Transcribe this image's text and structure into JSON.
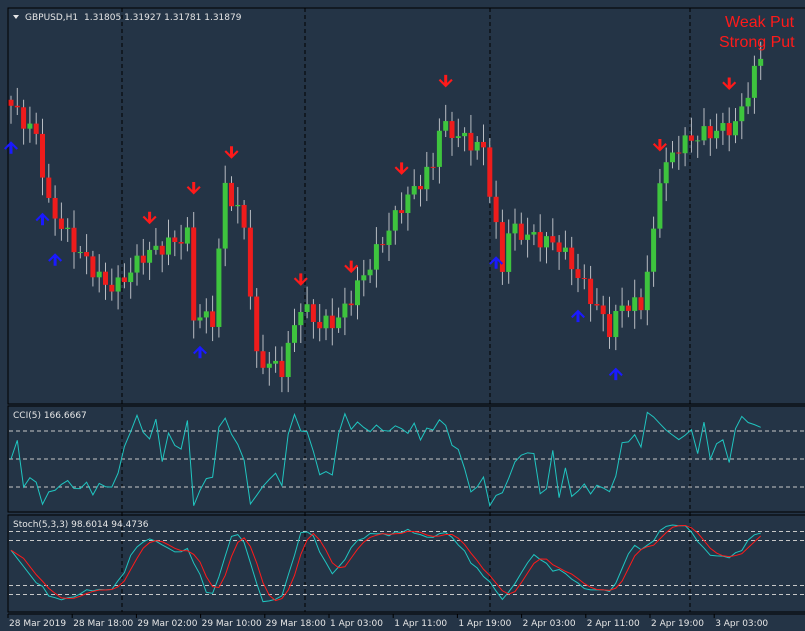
{
  "header": {
    "symbol": "GBPUSD,H1",
    "ohlc": "1.31805 1.31927 1.31781 1.31879"
  },
  "signals": {
    "weak": "Weak Put",
    "strong": "Strong Put"
  },
  "cci": {
    "label": "CCI(5) 166.6667",
    "period": 5,
    "levels": [
      100,
      0,
      -100
    ]
  },
  "stoch": {
    "label": "Stoch(5,3,3) 98.6014 94.4736",
    "k": 5,
    "d": 3,
    "slowing": 3,
    "levels": [
      80,
      20
    ]
  },
  "time_axis": [
    "28 Mar 2019",
    "28 Mar 18:00",
    "29 Mar 02:00",
    "29 Mar 10:00",
    "29 Mar 18:00",
    "1 Apr 03:00",
    "1 Apr 11:00",
    "1 Apr 19:00",
    "2 Apr 03:00",
    "2 Apr 11:00",
    "2 Apr 19:00",
    "3 Apr 03:00"
  ],
  "colors": {
    "background": "#243446",
    "bull": "#3ec43e",
    "bear": "#ee1c1c",
    "cci": "#20c5c0",
    "stoch_main": "#20c5c0",
    "stoch_signal": "#ff1a1a",
    "up_arrow": "#1a1aff",
    "down_arrow": "#ff1a1a"
  },
  "chart_data": {
    "type": "candlestick",
    "candle_count": 120,
    "price_range": [
      1.303,
      1.3218
    ],
    "price_path": [
      [
        0,
        1.3175
      ],
      [
        4,
        1.316
      ],
      [
        6,
        1.3125
      ],
      [
        10,
        1.3105
      ],
      [
        15,
        1.3085
      ],
      [
        17,
        1.3085
      ],
      [
        21,
        1.31
      ],
      [
        28,
        1.311
      ],
      [
        29,
        1.307
      ],
      [
        32,
        1.3068
      ],
      [
        34,
        1.3135
      ],
      [
        37,
        1.3115
      ],
      [
        39,
        1.3048
      ],
      [
        43,
        1.3043
      ],
      [
        46,
        1.3075
      ],
      [
        49,
        1.3065
      ],
      [
        52,
        1.3068
      ],
      [
        56,
        1.309
      ],
      [
        62,
        1.3125
      ],
      [
        67,
        1.3145
      ],
      [
        68,
        1.3165
      ],
      [
        71,
        1.316
      ],
      [
        75,
        1.3153
      ],
      [
        78,
        1.3093
      ],
      [
        79,
        1.3113
      ],
      [
        87,
        1.3105
      ],
      [
        90,
        1.309
      ],
      [
        95,
        1.3063
      ],
      [
        97,
        1.3075
      ],
      [
        100,
        1.3075
      ],
      [
        102,
        1.311
      ],
      [
        103,
        1.314
      ],
      [
        106,
        1.3155
      ],
      [
        109,
        1.316
      ],
      [
        115,
        1.3165
      ],
      [
        119,
        1.32
      ]
    ],
    "down_arrows": [
      22,
      29,
      35,
      46,
      54,
      62,
      69,
      103,
      114
    ],
    "up_arrows": [
      0,
      5,
      7,
      30,
      77,
      90,
      96
    ]
  }
}
